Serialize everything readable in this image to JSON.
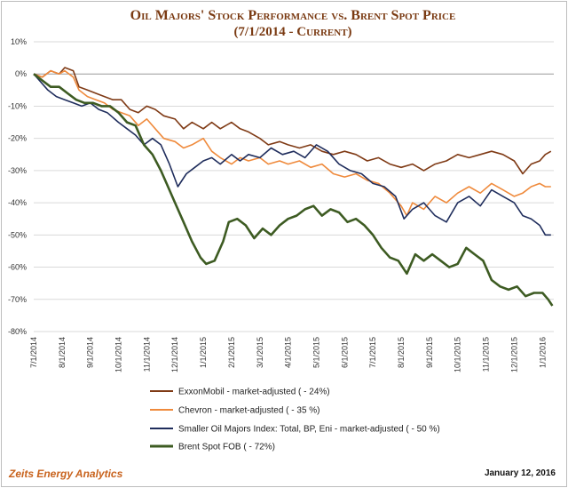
{
  "chart_data": {
    "type": "line",
    "title": "Oil Majors' Stock Performance vs. Brent Spot Price",
    "subtitle": "(7/1/2014 - Current)",
    "ylim": [
      -80,
      10
    ],
    "y_ticks": [
      10,
      0,
      -10,
      -20,
      -30,
      -40,
      -50,
      -60,
      -70,
      -80
    ],
    "y_tick_labels": [
      "10%",
      "0%",
      "-10%",
      "-20%",
      "-30%",
      "-40%",
      "-50%",
      "-60%",
      "-70%",
      "-80%"
    ],
    "x_tick_labels": [
      "7/1/2014",
      "8/1/2014",
      "9/1/2014",
      "10/1/2014",
      "11/1/2014",
      "12/1/2014",
      "1/1/2015",
      "2/1/2015",
      "3/1/2015",
      "4/1/2015",
      "5/1/2015",
      "6/1/2015",
      "7/1/2015",
      "8/1/2015",
      "9/1/2015",
      "10/1/2015",
      "11/1/2015",
      "12/1/2015",
      "1/1/2016"
    ],
    "x_range_months": [
      0,
      18.4
    ],
    "grid": true,
    "legend_position": "bottom",
    "series": [
      {
        "name": "ExxonMobil - market-adjusted ( - 24%)",
        "color": "#7f3a15",
        "points": [
          [
            0,
            0
          ],
          [
            0.3,
            -1
          ],
          [
            0.6,
            1
          ],
          [
            0.9,
            0
          ],
          [
            1.1,
            2
          ],
          [
            1.4,
            1
          ],
          [
            1.6,
            -4
          ],
          [
            1.9,
            -5
          ],
          [
            2.2,
            -6
          ],
          [
            2.5,
            -7
          ],
          [
            2.8,
            -8
          ],
          [
            3.1,
            -8
          ],
          [
            3.4,
            -11
          ],
          [
            3.7,
            -12
          ],
          [
            4,
            -10
          ],
          [
            4.3,
            -11
          ],
          [
            4.6,
            -13
          ],
          [
            5,
            -14
          ],
          [
            5.3,
            -17
          ],
          [
            5.6,
            -15
          ],
          [
            6,
            -17
          ],
          [
            6.3,
            -15
          ],
          [
            6.6,
            -17
          ],
          [
            7,
            -15
          ],
          [
            7.3,
            -17
          ],
          [
            7.6,
            -18
          ],
          [
            8,
            -20
          ],
          [
            8.3,
            -22
          ],
          [
            8.7,
            -21
          ],
          [
            9,
            -22
          ],
          [
            9.4,
            -23
          ],
          [
            9.8,
            -22
          ],
          [
            10.2,
            -24
          ],
          [
            10.6,
            -25
          ],
          [
            11,
            -24
          ],
          [
            11.4,
            -25
          ],
          [
            11.8,
            -27
          ],
          [
            12.2,
            -26
          ],
          [
            12.6,
            -28
          ],
          [
            13,
            -29
          ],
          [
            13.4,
            -28
          ],
          [
            13.8,
            -30
          ],
          [
            14.2,
            -28
          ],
          [
            14.6,
            -27
          ],
          [
            15,
            -25
          ],
          [
            15.4,
            -26
          ],
          [
            15.8,
            -25
          ],
          [
            16.2,
            -24
          ],
          [
            16.6,
            -25
          ],
          [
            17,
            -27
          ],
          [
            17.3,
            -31
          ],
          [
            17.6,
            -28
          ],
          [
            17.9,
            -27
          ],
          [
            18.1,
            -25
          ],
          [
            18.3,
            -24
          ]
        ]
      },
      {
        "name": "Chevron - market-adjusted ( - 35 %)",
        "color": "#ef8a3c",
        "points": [
          [
            0,
            0
          ],
          [
            0.3,
            -1
          ],
          [
            0.6,
            1
          ],
          [
            0.9,
            0
          ],
          [
            1.1,
            1
          ],
          [
            1.4,
            -1
          ],
          [
            1.6,
            -5
          ],
          [
            1.9,
            -7
          ],
          [
            2.2,
            -8
          ],
          [
            2.5,
            -9
          ],
          [
            2.8,
            -11
          ],
          [
            3.1,
            -12
          ],
          [
            3.4,
            -13
          ],
          [
            3.7,
            -16
          ],
          [
            4,
            -14
          ],
          [
            4.3,
            -17
          ],
          [
            4.6,
            -20
          ],
          [
            5,
            -21
          ],
          [
            5.3,
            -23
          ],
          [
            5.6,
            -22
          ],
          [
            6,
            -20
          ],
          [
            6.3,
            -24
          ],
          [
            6.6,
            -26
          ],
          [
            7,
            -28
          ],
          [
            7.3,
            -26
          ],
          [
            7.6,
            -27
          ],
          [
            8,
            -26
          ],
          [
            8.3,
            -28
          ],
          [
            8.7,
            -27
          ],
          [
            9,
            -28
          ],
          [
            9.4,
            -27
          ],
          [
            9.8,
            -29
          ],
          [
            10.2,
            -28
          ],
          [
            10.6,
            -31
          ],
          [
            11,
            -32
          ],
          [
            11.4,
            -31
          ],
          [
            11.8,
            -33
          ],
          [
            12.2,
            -34
          ],
          [
            12.6,
            -37
          ],
          [
            13,
            -41
          ],
          [
            13.2,
            -44
          ],
          [
            13.4,
            -40
          ],
          [
            13.8,
            -42
          ],
          [
            14.2,
            -38
          ],
          [
            14.6,
            -40
          ],
          [
            15,
            -37
          ],
          [
            15.4,
            -35
          ],
          [
            15.8,
            -37
          ],
          [
            16.2,
            -34
          ],
          [
            16.6,
            -36
          ],
          [
            17,
            -38
          ],
          [
            17.3,
            -37
          ],
          [
            17.6,
            -35
          ],
          [
            17.9,
            -34
          ],
          [
            18.1,
            -35
          ],
          [
            18.3,
            -35
          ]
        ]
      },
      {
        "name": "Smaller Oil Majors Index: Total, BP, Eni - market-adjusted ( - 50 %)",
        "color": "#1f2d5c",
        "points": [
          [
            0,
            0
          ],
          [
            0.2,
            -2
          ],
          [
            0.5,
            -5
          ],
          [
            0.8,
            -7
          ],
          [
            1.1,
            -8
          ],
          [
            1.4,
            -9
          ],
          [
            1.7,
            -10
          ],
          [
            2,
            -9
          ],
          [
            2.3,
            -11
          ],
          [
            2.6,
            -12
          ],
          [
            3,
            -15
          ],
          [
            3.3,
            -17
          ],
          [
            3.6,
            -19
          ],
          [
            3.9,
            -22
          ],
          [
            4.2,
            -20
          ],
          [
            4.5,
            -22
          ],
          [
            4.8,
            -28
          ],
          [
            5.1,
            -35
          ],
          [
            5.4,
            -31
          ],
          [
            5.7,
            -29
          ],
          [
            6,
            -27
          ],
          [
            6.3,
            -26
          ],
          [
            6.6,
            -28
          ],
          [
            7,
            -25
          ],
          [
            7.3,
            -27
          ],
          [
            7.6,
            -25
          ],
          [
            8,
            -26
          ],
          [
            8.4,
            -23
          ],
          [
            8.8,
            -25
          ],
          [
            9.2,
            -24
          ],
          [
            9.6,
            -26
          ],
          [
            10,
            -22
          ],
          [
            10.4,
            -24
          ],
          [
            10.8,
            -28
          ],
          [
            11.2,
            -30
          ],
          [
            11.6,
            -31
          ],
          [
            12,
            -34
          ],
          [
            12.4,
            -35
          ],
          [
            12.8,
            -38
          ],
          [
            13.1,
            -45
          ],
          [
            13.4,
            -42
          ],
          [
            13.8,
            -40
          ],
          [
            14.2,
            -44
          ],
          [
            14.6,
            -46
          ],
          [
            15,
            -40
          ],
          [
            15.4,
            -38
          ],
          [
            15.8,
            -41
          ],
          [
            16.2,
            -36
          ],
          [
            16.6,
            -38
          ],
          [
            17,
            -40
          ],
          [
            17.3,
            -44
          ],
          [
            17.6,
            -45
          ],
          [
            17.9,
            -47
          ],
          [
            18.1,
            -50
          ],
          [
            18.3,
            -50
          ]
        ]
      },
      {
        "name": "Brent Spot FOB ( - 72%)",
        "color": "#3d5b22",
        "points": [
          [
            0,
            0
          ],
          [
            0.3,
            -2
          ],
          [
            0.6,
            -4
          ],
          [
            0.9,
            -4
          ],
          [
            1.2,
            -6
          ],
          [
            1.5,
            -8
          ],
          [
            1.8,
            -9
          ],
          [
            2.1,
            -9
          ],
          [
            2.4,
            -10
          ],
          [
            2.7,
            -10
          ],
          [
            3,
            -12
          ],
          [
            3.3,
            -15
          ],
          [
            3.6,
            -16
          ],
          [
            3.9,
            -22
          ],
          [
            4.2,
            -25
          ],
          [
            4.5,
            -30
          ],
          [
            4.7,
            -34
          ],
          [
            5,
            -40
          ],
          [
            5.3,
            -46
          ],
          [
            5.6,
            -52
          ],
          [
            5.9,
            -57
          ],
          [
            6.1,
            -59
          ],
          [
            6.4,
            -58
          ],
          [
            6.7,
            -52
          ],
          [
            6.9,
            -46
          ],
          [
            7.2,
            -45
          ],
          [
            7.5,
            -47
          ],
          [
            7.8,
            -51
          ],
          [
            8.1,
            -48
          ],
          [
            8.4,
            -50
          ],
          [
            8.7,
            -47
          ],
          [
            9,
            -45
          ],
          [
            9.3,
            -44
          ],
          [
            9.6,
            -42
          ],
          [
            9.9,
            -41
          ],
          [
            10.2,
            -44
          ],
          [
            10.5,
            -42
          ],
          [
            10.8,
            -43
          ],
          [
            11.1,
            -46
          ],
          [
            11.4,
            -45
          ],
          [
            11.7,
            -47
          ],
          [
            12,
            -50
          ],
          [
            12.3,
            -54
          ],
          [
            12.6,
            -57
          ],
          [
            12.9,
            -58
          ],
          [
            13.2,
            -62
          ],
          [
            13.5,
            -56
          ],
          [
            13.8,
            -58
          ],
          [
            14.1,
            -56
          ],
          [
            14.4,
            -58
          ],
          [
            14.7,
            -60
          ],
          [
            15,
            -59
          ],
          [
            15.3,
            -54
          ],
          [
            15.6,
            -56
          ],
          [
            15.9,
            -58
          ],
          [
            16.2,
            -64
          ],
          [
            16.5,
            -66
          ],
          [
            16.8,
            -67
          ],
          [
            17.1,
            -66
          ],
          [
            17.4,
            -69
          ],
          [
            17.7,
            -68
          ],
          [
            18,
            -68
          ],
          [
            18.2,
            -70
          ],
          [
            18.35,
            -72
          ]
        ]
      }
    ]
  },
  "footer": {
    "source": "Zeits Energy Analytics",
    "date": "January 12, 2016"
  }
}
